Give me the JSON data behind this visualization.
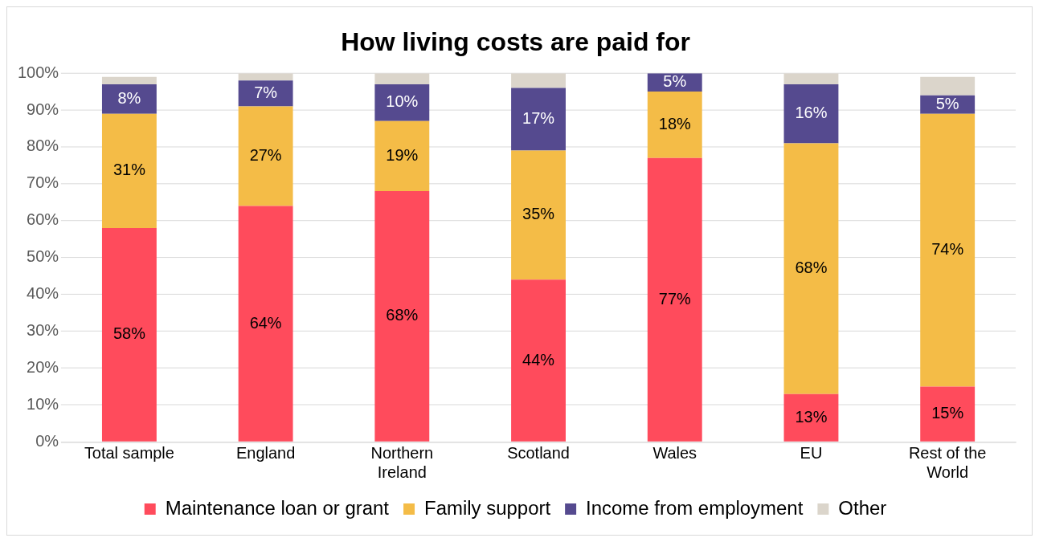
{
  "chart_data": {
    "type": "bar",
    "title": "How living costs are paid for",
    "stacked": true,
    "categories": [
      "Total sample",
      "England",
      "Northern Ireland",
      "Scotland",
      "Wales",
      "EU",
      "Rest of the World"
    ],
    "series": [
      {
        "name": "Maintenance loan or grant",
        "color": "#ff4b5c",
        "values": [
          58,
          64,
          68,
          44,
          77,
          13,
          15
        ],
        "value_labels": [
          "58%",
          "64%",
          "68%",
          "44%",
          "77%",
          "13%",
          "15%"
        ]
      },
      {
        "name": "Family support",
        "color": "#f4bc47",
        "values": [
          31,
          27,
          19,
          35,
          18,
          68,
          74
        ],
        "value_labels": [
          "31%",
          "27%",
          "19%",
          "35%",
          "18%",
          "68%",
          "74%"
        ]
      },
      {
        "name": "Income from employment",
        "color": "#554a8f",
        "values": [
          8,
          7,
          10,
          17,
          5,
          16,
          5
        ],
        "value_labels": [
          "8%",
          "7%",
          "10%",
          "17%",
          "5%",
          "16%",
          "5%"
        ]
      },
      {
        "name": "Other",
        "color": "#dbd5cb",
        "values": [
          2,
          2,
          3,
          4,
          0,
          3,
          5
        ]
      }
    ],
    "ylim": [
      0,
      100
    ],
    "yticks": [
      {
        "value": 0,
        "label": "0%"
      },
      {
        "value": 10,
        "label": "10%"
      },
      {
        "value": 20,
        "label": "20%"
      },
      {
        "value": 30,
        "label": "30%"
      },
      {
        "value": 40,
        "label": "40%"
      },
      {
        "value": 50,
        "label": "50%"
      },
      {
        "value": 60,
        "label": "60%"
      },
      {
        "value": 70,
        "label": "70%"
      },
      {
        "value": 80,
        "label": "80%"
      },
      {
        "value": 90,
        "label": "90%"
      },
      {
        "value": 100,
        "label": "100%"
      }
    ],
    "grid": "y",
    "legend": "bottom"
  }
}
